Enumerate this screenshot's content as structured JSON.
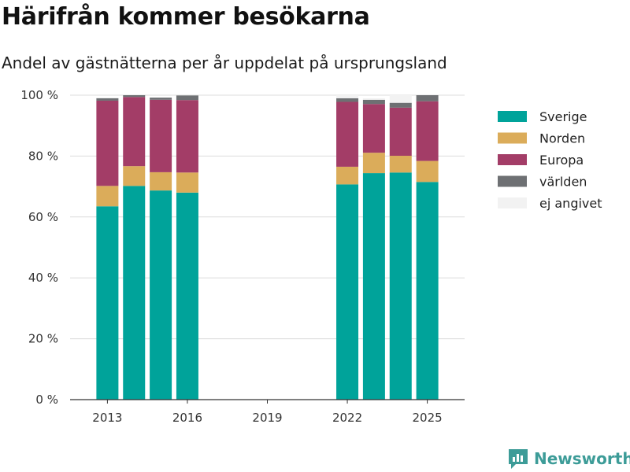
{
  "title": "Härifrån kommer besökarna",
  "subtitle": "Andel av gästnätterna per år uppdelat på ursprungsland",
  "brand": "Newsworthy",
  "chart_data": {
    "type": "bar",
    "stacked": true,
    "x": [
      2013,
      2014,
      2015,
      2016,
      2022,
      2023,
      2024,
      2025
    ],
    "x_ticks": [
      2013,
      2016,
      2019,
      2022,
      2025
    ],
    "x_range": [
      2011.6,
      2026.4
    ],
    "ylim": [
      0,
      100
    ],
    "y_ticks": [
      0,
      20,
      40,
      60,
      80,
      100
    ],
    "y_tick_labels": [
      "0 %",
      "20 %",
      "40 %",
      "60 %",
      "80 %",
      "100 %"
    ],
    "grid": true,
    "legend_position": "right",
    "series": [
      {
        "name": "Sverige",
        "color": "#00a39a",
        "values": [
          63.5,
          70.2,
          68.7,
          68.0,
          70.7,
          74.4,
          74.6,
          71.5
        ]
      },
      {
        "name": "Norden",
        "color": "#dbac5a",
        "values": [
          6.7,
          6.5,
          6.0,
          6.6,
          5.8,
          6.7,
          5.5,
          6.9
        ]
      },
      {
        "name": "Europa",
        "color": "#a33d67",
        "values": [
          28.0,
          22.7,
          23.8,
          23.8,
          21.3,
          16.0,
          15.8,
          19.6
        ]
      },
      {
        "name": "världen",
        "color": "#6e7073",
        "values": [
          0.8,
          0.6,
          0.7,
          1.5,
          1.2,
          1.4,
          1.6,
          2.0
        ]
      },
      {
        "name": "ej angivet",
        "color": "#f2f2f2",
        "values": [
          0,
          0,
          0,
          0,
          1.0,
          0.5,
          2.5,
          0
        ]
      }
    ]
  }
}
